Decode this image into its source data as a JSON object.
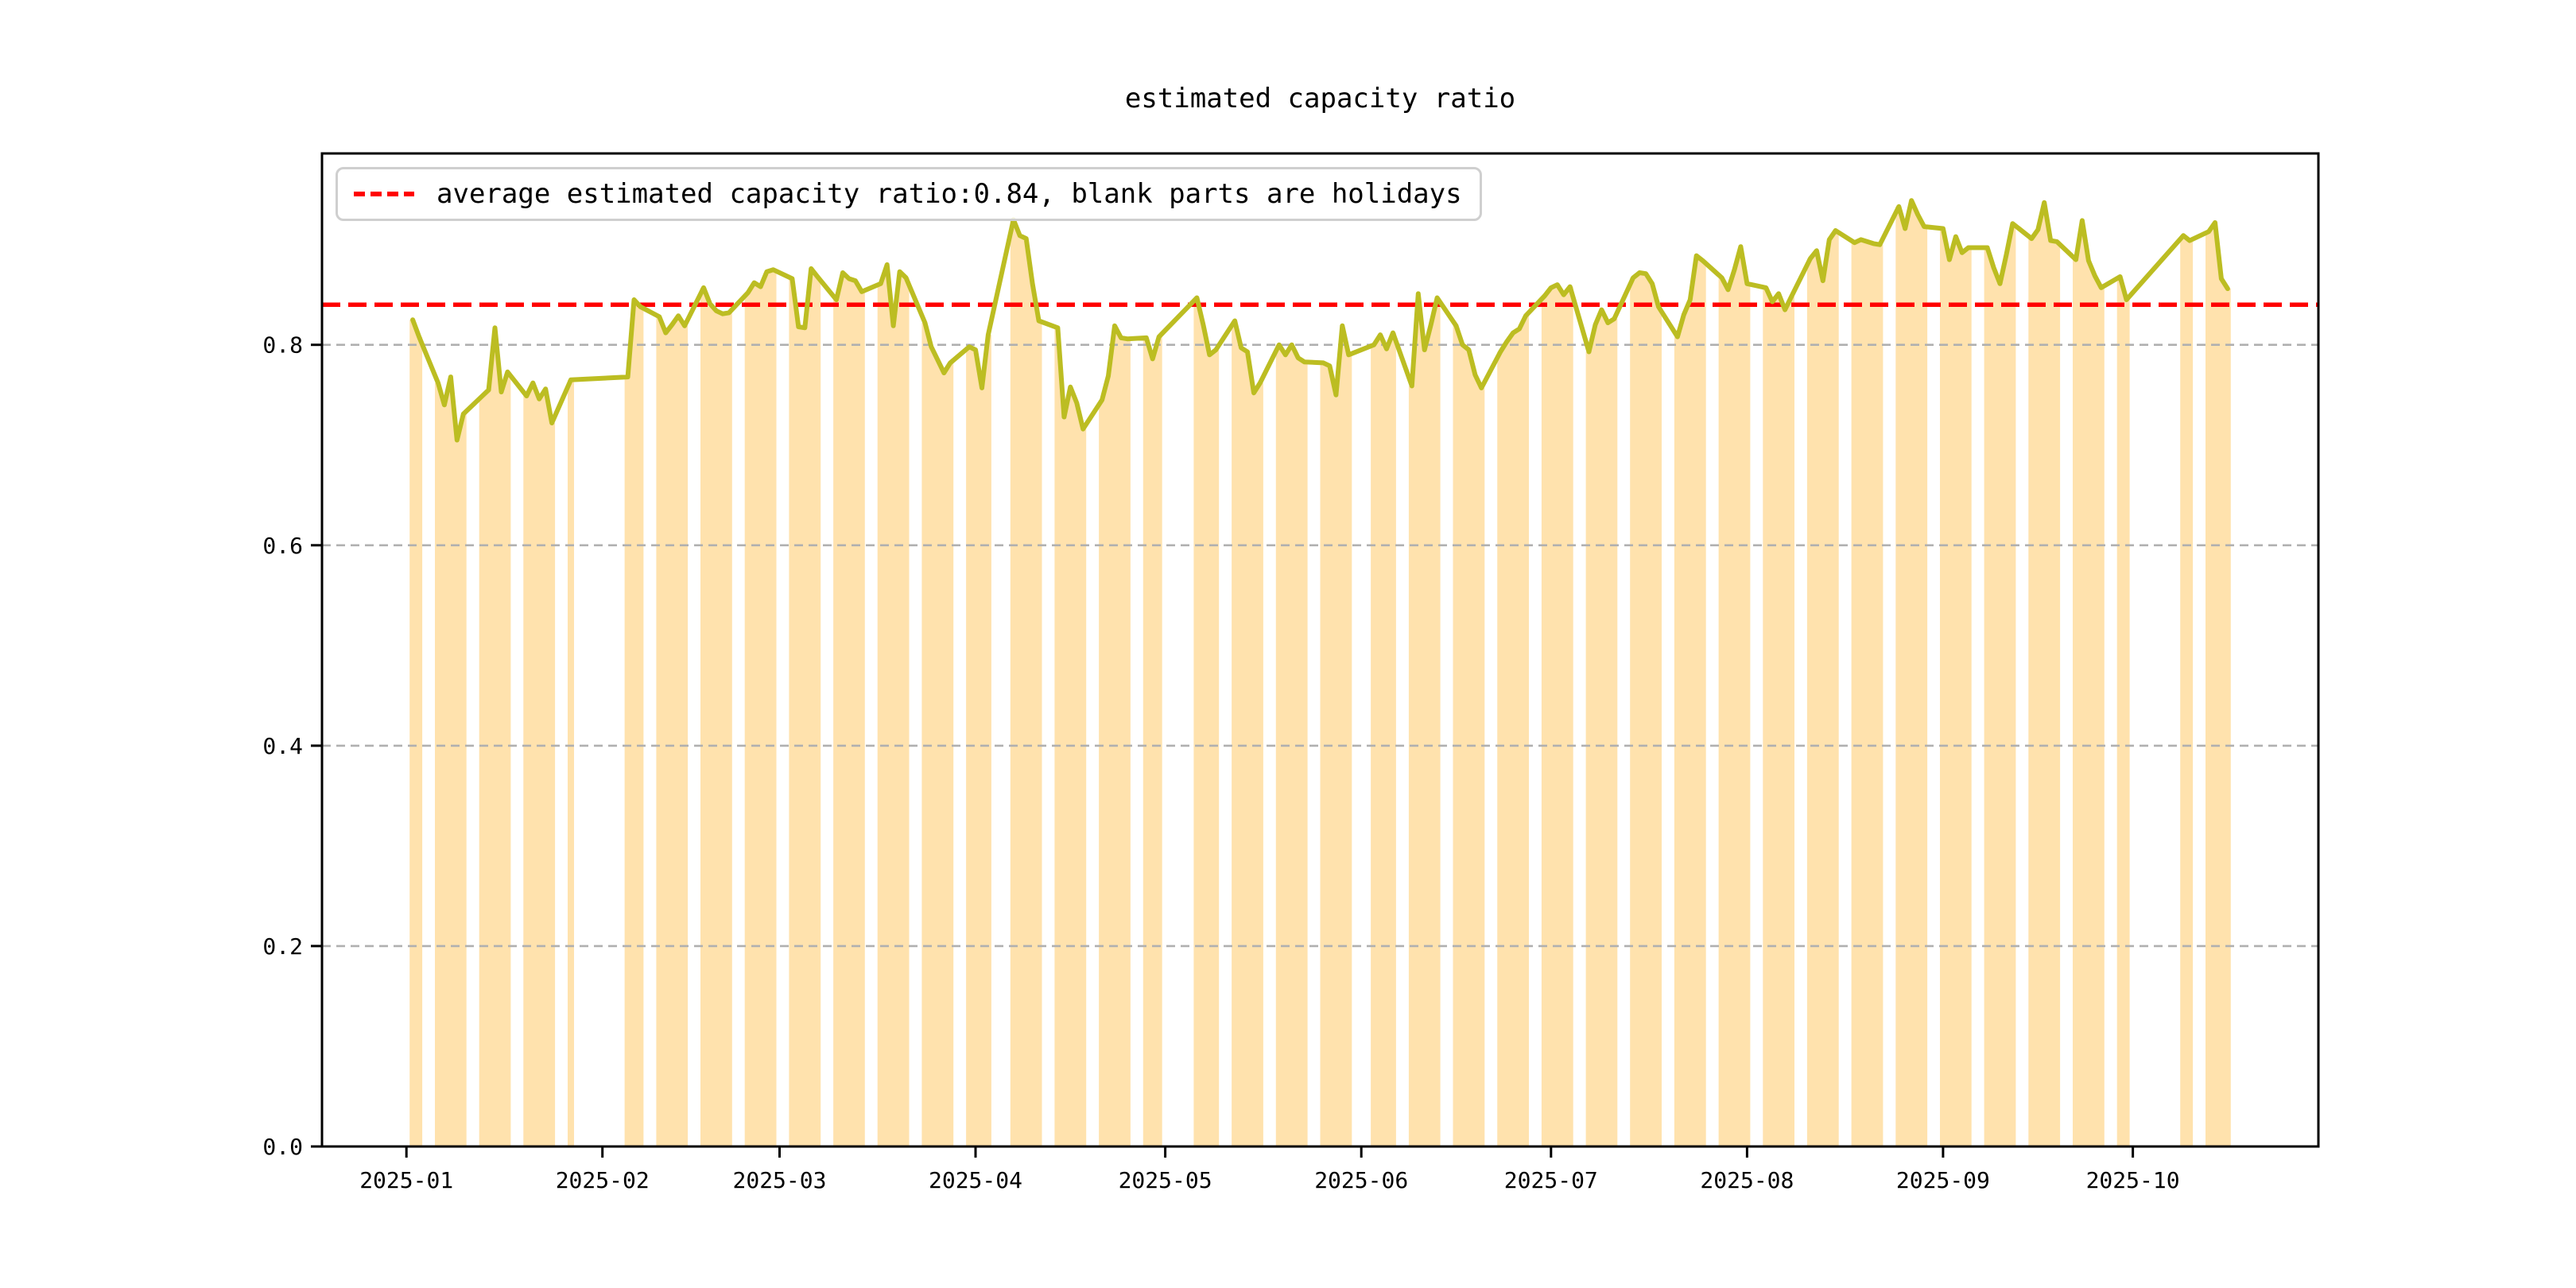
{
  "figure": {
    "title": "estimated capacity ratio"
  },
  "legend": {
    "label": "average estimated capacity ratio:0.84, blank parts are holidays"
  },
  "chart_data": {
    "type": "line",
    "title": "estimated capacity ratio",
    "legend_label": "average estimated capacity ratio:0.84, blank parts are holidays",
    "legend_position": "upper-left",
    "average_value": 0.84,
    "blank_parts_are_holidays": true,
    "grid": true,
    "x_tick_labels": [
      "2025-01",
      "2025-02",
      "2025-03",
      "2025-04",
      "2025-05",
      "2025-06",
      "2025-07",
      "2025-08",
      "2025-09",
      "2025-10"
    ],
    "y_tick_labels": [
      "0.0",
      "0.2",
      "0.4",
      "0.6",
      "0.8"
    ],
    "y_ticks": [
      0.0,
      0.2,
      0.4,
      0.6,
      0.8
    ],
    "ylim": [
      0,
      0.991
    ],
    "xlim_days": [
      -13.35,
      302.35
    ],
    "colors": {
      "line": "#bcbd22",
      "band_fill": "rgba(255,166,0,0.32)",
      "average_line": "#ff0000",
      "grid": "#b0b0b0",
      "spine": "#000000",
      "legend_border": "#cfcfcf"
    },
    "series": [
      {
        "name": "estimated capacity ratio",
        "dates": [
          "2025-01-02",
          "2025-01-03",
          "2025-01-06",
          "2025-01-07",
          "2025-01-08",
          "2025-01-09",
          "2025-01-10",
          "2025-01-13",
          "2025-01-14",
          "2025-01-15",
          "2025-01-16",
          "2025-01-17",
          "2025-01-20",
          "2025-01-21",
          "2025-01-22",
          "2025-01-23",
          "2025-01-24",
          "2025-01-27",
          "2025-02-05",
          "2025-02-06",
          "2025-02-07",
          "2025-02-10",
          "2025-02-11",
          "2025-02-12",
          "2025-02-13",
          "2025-02-14",
          "2025-02-17",
          "2025-02-18",
          "2025-02-19",
          "2025-02-20",
          "2025-02-21",
          "2025-02-24",
          "2025-02-25",
          "2025-02-26",
          "2025-02-27",
          "2025-02-28",
          "2025-03-03",
          "2025-03-04",
          "2025-03-05",
          "2025-03-06",
          "2025-03-07",
          "2025-03-10",
          "2025-03-11",
          "2025-03-12",
          "2025-03-13",
          "2025-03-14",
          "2025-03-17",
          "2025-03-18",
          "2025-03-19",
          "2025-03-20",
          "2025-03-21",
          "2025-03-24",
          "2025-03-25",
          "2025-03-26",
          "2025-03-27",
          "2025-03-28",
          "2025-03-31",
          "2025-04-01",
          "2025-04-02",
          "2025-04-03",
          "2025-04-07",
          "2025-04-08",
          "2025-04-09",
          "2025-04-10",
          "2025-04-11",
          "2025-04-14",
          "2025-04-15",
          "2025-04-16",
          "2025-04-17",
          "2025-04-18",
          "2025-04-21",
          "2025-04-22",
          "2025-04-23",
          "2025-04-24",
          "2025-04-25",
          "2025-04-28",
          "2025-04-29",
          "2025-04-30",
          "2025-05-06",
          "2025-05-07",
          "2025-05-08",
          "2025-05-09",
          "2025-05-12",
          "2025-05-13",
          "2025-05-14",
          "2025-05-15",
          "2025-05-16",
          "2025-05-19",
          "2025-05-20",
          "2025-05-21",
          "2025-05-22",
          "2025-05-23",
          "2025-05-26",
          "2025-05-27",
          "2025-05-28",
          "2025-05-29",
          "2025-05-30",
          "2025-06-03",
          "2025-06-04",
          "2025-06-05",
          "2025-06-06",
          "2025-06-09",
          "2025-06-10",
          "2025-06-11",
          "2025-06-12",
          "2025-06-13",
          "2025-06-16",
          "2025-06-17",
          "2025-06-18",
          "2025-06-19",
          "2025-06-20",
          "2025-06-23",
          "2025-06-24",
          "2025-06-25",
          "2025-06-26",
          "2025-06-27",
          "2025-06-30",
          "2025-07-01",
          "2025-07-02",
          "2025-07-03",
          "2025-07-04",
          "2025-07-07",
          "2025-07-08",
          "2025-07-09",
          "2025-07-10",
          "2025-07-11",
          "2025-07-14",
          "2025-07-15",
          "2025-07-16",
          "2025-07-17",
          "2025-07-18",
          "2025-07-21",
          "2025-07-22",
          "2025-07-23",
          "2025-07-24",
          "2025-07-25",
          "2025-07-28",
          "2025-07-29",
          "2025-07-30",
          "2025-07-31",
          "2025-08-01",
          "2025-08-04",
          "2025-08-05",
          "2025-08-06",
          "2025-08-07",
          "2025-08-08",
          "2025-08-11",
          "2025-08-12",
          "2025-08-13",
          "2025-08-14",
          "2025-08-15",
          "2025-08-18",
          "2025-08-19",
          "2025-08-20",
          "2025-08-21",
          "2025-08-22",
          "2025-08-25",
          "2025-08-26",
          "2025-08-27",
          "2025-08-28",
          "2025-08-29",
          "2025-09-01",
          "2025-09-02",
          "2025-09-03",
          "2025-09-04",
          "2025-09-05",
          "2025-09-08",
          "2025-09-09",
          "2025-09-10",
          "2025-09-11",
          "2025-09-12",
          "2025-09-15",
          "2025-09-16",
          "2025-09-17",
          "2025-09-18",
          "2025-09-19",
          "2025-09-22",
          "2025-09-23",
          "2025-09-24",
          "2025-09-25",
          "2025-09-26",
          "2025-09-29",
          "2025-09-30",
          "2025-10-09",
          "2025-10-10",
          "2025-10-13",
          "2025-10-14",
          "2025-10-15",
          "2025-10-16"
        ],
        "values": [
          0.825,
          0.808,
          0.762,
          0.74,
          0.768,
          0.705,
          0.731,
          0.749,
          0.755,
          0.817,
          0.753,
          0.773,
          0.749,
          0.762,
          0.746,
          0.756,
          0.722,
          0.765,
          0.768,
          0.845,
          0.838,
          0.828,
          0.812,
          0.82,
          0.829,
          0.819,
          0.857,
          0.841,
          0.834,
          0.831,
          0.832,
          0.852,
          0.862,
          0.858,
          0.873,
          0.875,
          0.866,
          0.818,
          0.817,
          0.876,
          0.868,
          0.845,
          0.872,
          0.866,
          0.864,
          0.853,
          0.861,
          0.88,
          0.819,
          0.873,
          0.867,
          0.822,
          0.798,
          0.785,
          0.772,
          0.782,
          0.798,
          0.795,
          0.757,
          0.81,
          0.925,
          0.909,
          0.906,
          0.861,
          0.824,
          0.817,
          0.728,
          0.758,
          0.742,
          0.716,
          0.745,
          0.769,
          0.819,
          0.807,
          0.806,
          0.807,
          0.786,
          0.808,
          0.847,
          0.82,
          0.79,
          0.795,
          0.824,
          0.797,
          0.793,
          0.752,
          0.762,
          0.8,
          0.79,
          0.8,
          0.787,
          0.783,
          0.782,
          0.779,
          0.75,
          0.819,
          0.79,
          0.8,
          0.81,
          0.796,
          0.812,
          0.759,
          0.851,
          0.795,
          0.82,
          0.847,
          0.819,
          0.8,
          0.795,
          0.77,
          0.757,
          0.793,
          0.803,
          0.812,
          0.816,
          0.829,
          0.849,
          0.857,
          0.86,
          0.85,
          0.858,
          0.793,
          0.82,
          0.835,
          0.822,
          0.826,
          0.867,
          0.872,
          0.871,
          0.861,
          0.838,
          0.808,
          0.83,
          0.845,
          0.889,
          0.884,
          0.867,
          0.855,
          0.875,
          0.898,
          0.861,
          0.857,
          0.843,
          0.851,
          0.835,
          0.848,
          0.886,
          0.894,
          0.864,
          0.905,
          0.914,
          0.902,
          0.905,
          0.903,
          0.901,
          0.9,
          0.938,
          0.916,
          0.944,
          0.93,
          0.918,
          0.916,
          0.885,
          0.908,
          0.892,
          0.897,
          0.897,
          0.877,
          0.861,
          0.89,
          0.921,
          0.906,
          0.915,
          0.942,
          0.904,
          0.903,
          0.885,
          0.924,
          0.884,
          0.869,
          0.857,
          0.868,
          0.845,
          0.909,
          0.904,
          0.913,
          0.922,
          0.866,
          0.856
        ]
      }
    ]
  }
}
